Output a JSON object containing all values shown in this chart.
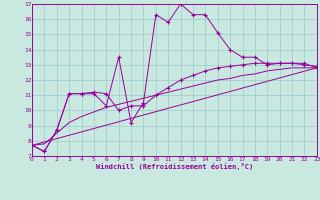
{
  "xlabel": "Windchill (Refroidissement éolien,°C)",
  "xlim": [
    0,
    23
  ],
  "ylim": [
    7,
    17
  ],
  "xticks": [
    0,
    1,
    2,
    3,
    4,
    5,
    6,
    7,
    8,
    9,
    10,
    11,
    12,
    13,
    14,
    15,
    16,
    17,
    18,
    19,
    20,
    21,
    22,
    23
  ],
  "yticks": [
    7,
    8,
    9,
    10,
    11,
    12,
    13,
    14,
    15,
    16,
    17
  ],
  "bg_color": "#c8e8e0",
  "line_color": "#990099",
  "grid_color": "#99cccc",
  "line1_x": [
    0,
    1,
    2,
    3,
    4,
    5,
    6,
    7,
    8,
    9,
    10,
    11,
    12,
    13,
    14,
    15,
    16,
    17,
    18,
    19,
    20,
    21,
    22,
    23
  ],
  "line1_y": [
    7.7,
    7.3,
    8.7,
    11.1,
    11.1,
    11.1,
    10.3,
    13.5,
    9.2,
    10.5,
    16.3,
    15.8,
    17.0,
    16.3,
    16.3,
    15.1,
    14.0,
    13.5,
    13.5,
    13.0,
    13.1,
    13.1,
    13.1,
    12.8
  ],
  "line2_x": [
    0,
    1,
    2,
    3,
    4,
    5,
    6,
    7,
    8,
    9,
    10,
    11,
    12,
    13,
    14,
    15,
    16,
    17,
    18,
    19,
    20,
    21,
    22,
    23
  ],
  "line2_y": [
    7.7,
    7.3,
    8.7,
    11.1,
    11.1,
    11.2,
    11.1,
    10.0,
    10.3,
    10.3,
    11.0,
    11.5,
    12.0,
    12.3,
    12.6,
    12.8,
    12.9,
    13.0,
    13.1,
    13.1,
    13.1,
    13.1,
    13.0,
    12.9
  ],
  "line3_x": [
    0,
    23
  ],
  "line3_y": [
    7.7,
    12.8
  ],
  "line4_x": [
    0,
    1,
    2,
    3,
    4,
    5,
    6,
    7,
    8,
    9,
    10,
    11,
    12,
    13,
    14,
    15,
    16,
    17,
    18,
    19,
    20,
    21,
    22,
    23
  ],
  "line4_y": [
    7.7,
    7.8,
    8.5,
    9.2,
    9.6,
    9.9,
    10.2,
    10.4,
    10.6,
    10.8,
    11.0,
    11.2,
    11.4,
    11.6,
    11.8,
    12.0,
    12.1,
    12.3,
    12.4,
    12.6,
    12.7,
    12.8,
    12.8,
    12.8
  ]
}
